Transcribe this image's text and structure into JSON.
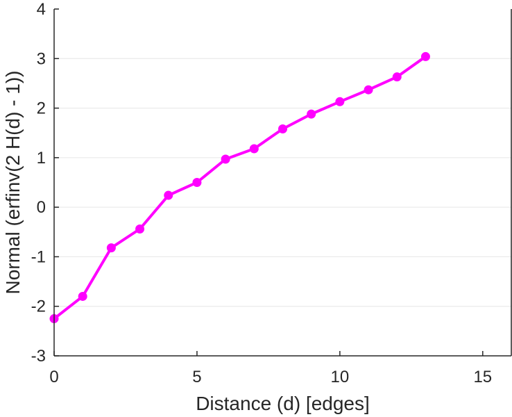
{
  "chart_data": {
    "type": "line",
    "title": "",
    "xlabel": "Distance (d) [edges]",
    "ylabel": "Normal (erfinv(2 H(d) - 1))",
    "xlim": [
      0,
      16
    ],
    "ylim": [
      -3,
      4
    ],
    "xticks": [
      0,
      5,
      10,
      15
    ],
    "yticks": [
      -3,
      -2,
      -1,
      0,
      1,
      2,
      3,
      4
    ],
    "grid": "horizontal",
    "series": [
      {
        "color": "#ff00ff",
        "marker": "circle",
        "x": [
          0,
          1,
          2,
          3,
          4,
          5,
          6,
          7,
          8,
          9,
          10,
          11,
          12,
          13
        ],
        "y": [
          -2.25,
          -1.8,
          -0.82,
          -0.44,
          0.24,
          0.5,
          0.97,
          1.18,
          1.58,
          1.88,
          2.13,
          2.37,
          2.63,
          3.04
        ]
      }
    ]
  }
}
